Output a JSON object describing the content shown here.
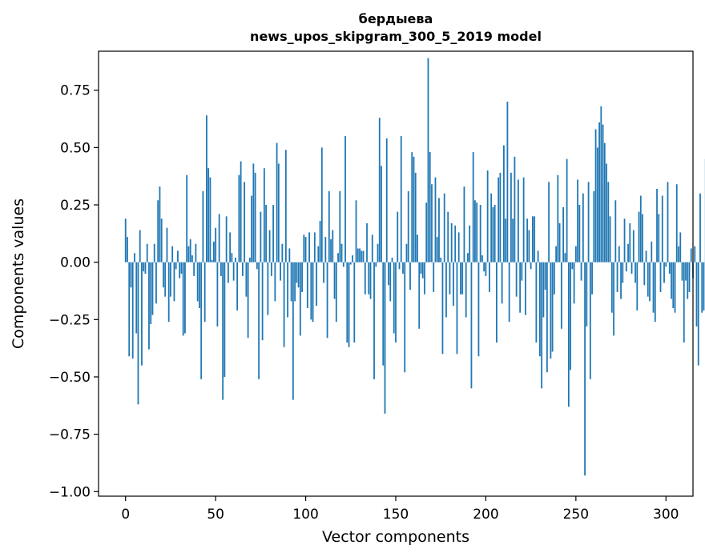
{
  "chart_data": {
    "type": "bar",
    "title_line1": "бердыева",
    "title_line2": "news_upos_skipgram_300_5_2019 model",
    "xlabel": "Vector components",
    "ylabel": "Components values",
    "xlim": [
      -15,
      315
    ],
    "ylim": [
      -1.02,
      0.92
    ],
    "x_ticks": [
      0,
      50,
      100,
      150,
      200,
      250,
      300
    ],
    "x_tick_labels": [
      "0",
      "50",
      "100",
      "150",
      "200",
      "250",
      "300"
    ],
    "y_ticks": [
      0.75,
      0.5,
      0.25,
      0.0,
      -0.25,
      -0.5,
      -0.75,
      -1.0
    ],
    "y_tick_labels": [
      "0.75",
      "0.50",
      "0.25",
      "0.00",
      "−0.25",
      "−0.50",
      "−0.75",
      "−1.00"
    ],
    "bar_color": "#1f77b4",
    "values": [
      0.19,
      0.11,
      -0.41,
      -0.11,
      -0.42,
      0.04,
      -0.31,
      -0.62,
      0.14,
      -0.45,
      -0.04,
      -0.05,
      0.08,
      -0.38,
      -0.27,
      -0.23,
      0.08,
      -0.18,
      0.27,
      0.33,
      0.19,
      -0.11,
      -0.15,
      0.15,
      -0.26,
      -0.15,
      0.07,
      -0.17,
      -0.03,
      0.05,
      -0.07,
      -0.05,
      -0.32,
      -0.31,
      0.38,
      0.07,
      0.1,
      0.03,
      -0.06,
      0.08,
      -0.17,
      -0.2,
      -0.51,
      0.31,
      -0.26,
      0.64,
      0.41,
      0.37,
      0.01,
      0.09,
      0.15,
      -0.28,
      0.21,
      -0.06,
      -0.6,
      -0.5,
      0.2,
      -0.09,
      0.13,
      0.04,
      -0.08,
      0.02,
      -0.21,
      0.38,
      0.44,
      -0.06,
      0.35,
      -0.15,
      -0.33,
      0.02,
      0.29,
      0.43,
      0.39,
      -0.03,
      -0.51,
      0.22,
      -0.34,
      0.41,
      0.25,
      -0.23,
      0.14,
      -0.06,
      0.25,
      -0.17,
      0.52,
      0.43,
      -0.08,
      0.08,
      -0.37,
      0.49,
      -0.24,
      0.06,
      -0.17,
      -0.6,
      -0.17,
      -0.09,
      -0.11,
      -0.32,
      -0.13,
      0.12,
      0.11,
      -0.2,
      0.13,
      -0.25,
      -0.26,
      0.13,
      -0.19,
      0.07,
      0.18,
      0.5,
      -0.09,
      0.11,
      -0.33,
      0.31,
      0.1,
      0.14,
      -0.16,
      -0.26,
      0.04,
      0.31,
      0.08,
      -0.02,
      0.55,
      -0.35,
      -0.37,
      -0.01,
      0.03,
      -0.35,
      0.27,
      0.06,
      0.06,
      0.05,
      0.05,
      -0.14,
      0.17,
      -0.14,
      -0.16,
      0.12,
      -0.51,
      -0.02,
      0.08,
      0.63,
      0.42,
      -0.45,
      -0.66,
      0.54,
      -0.1,
      -0.17,
      0.02,
      -0.31,
      -0.35,
      0.22,
      -0.03,
      0.55,
      -0.05,
      -0.48,
      0.08,
      0.31,
      -0.12,
      0.48,
      0.46,
      0.39,
      0.12,
      -0.29,
      -0.05,
      -0.07,
      -0.14,
      0.26,
      0.89,
      0.48,
      0.34,
      -0.13,
      0.37,
      0.11,
      0.28,
      0.02,
      -0.4,
      0.3,
      -0.24,
      0.22,
      -0.14,
      0.17,
      -0.19,
      0.16,
      -0.4,
      0.13,
      -0.14,
      -0.14,
      0.33,
      -0.24,
      0.04,
      0.16,
      -0.55,
      0.48,
      0.27,
      0.26,
      -0.41,
      0.25,
      0.03,
      -0.04,
      -0.06,
      0.4,
      -0.13,
      0.3,
      0.24,
      0.25,
      -0.35,
      0.37,
      0.39,
      -0.18,
      0.51,
      0.19,
      0.7,
      -0.26,
      0.39,
      0.19,
      0.46,
      -0.15,
      0.36,
      -0.22,
      -0.08,
      0.37,
      -0.23,
      0.19,
      0.14,
      -0.03,
      0.2,
      0.2,
      -0.35,
      0.05,
      -0.41,
      -0.55,
      -0.24,
      -0.12,
      -0.48,
      0.35,
      -0.42,
      -0.39,
      -0.14,
      0.07,
      0.38,
      0.17,
      -0.29,
      0.24,
      0.04,
      0.45,
      -0.63,
      -0.47,
      -0.03,
      -0.18,
      0.07,
      0.36,
      0.25,
      -0.08,
      0.3,
      -0.93,
      -0.28,
      0.35,
      -0.51,
      -0.14,
      0.31,
      0.58,
      0.5,
      0.61,
      0.68,
      0.6,
      0.52,
      0.43,
      0.35,
      0.2,
      -0.22,
      -0.32,
      0.27,
      -0.13,
      0.07,
      -0.16,
      -0.09,
      0.19,
      -0.04,
      0.08,
      0.17,
      -0.05,
      0.14,
      -0.09,
      -0.21,
      0.22,
      0.29,
      0.21,
      -0.1,
      0.05,
      -0.15,
      -0.17,
      0.09,
      -0.22,
      -0.26,
      0.32,
      0.21,
      -0.13,
      0.29,
      -0.09,
      -0.02,
      0.35,
      -0.05,
      -0.16,
      -0.2,
      -0.22,
      0.34,
      0.07,
      0.13,
      -0.08,
      -0.35,
      -0.08,
      -0.16,
      -0.13,
      0.06,
      -0.07,
      0.07,
      -0.28,
      -0.45,
      0.3,
      -0.22,
      -0.21,
      0.45
    ]
  }
}
